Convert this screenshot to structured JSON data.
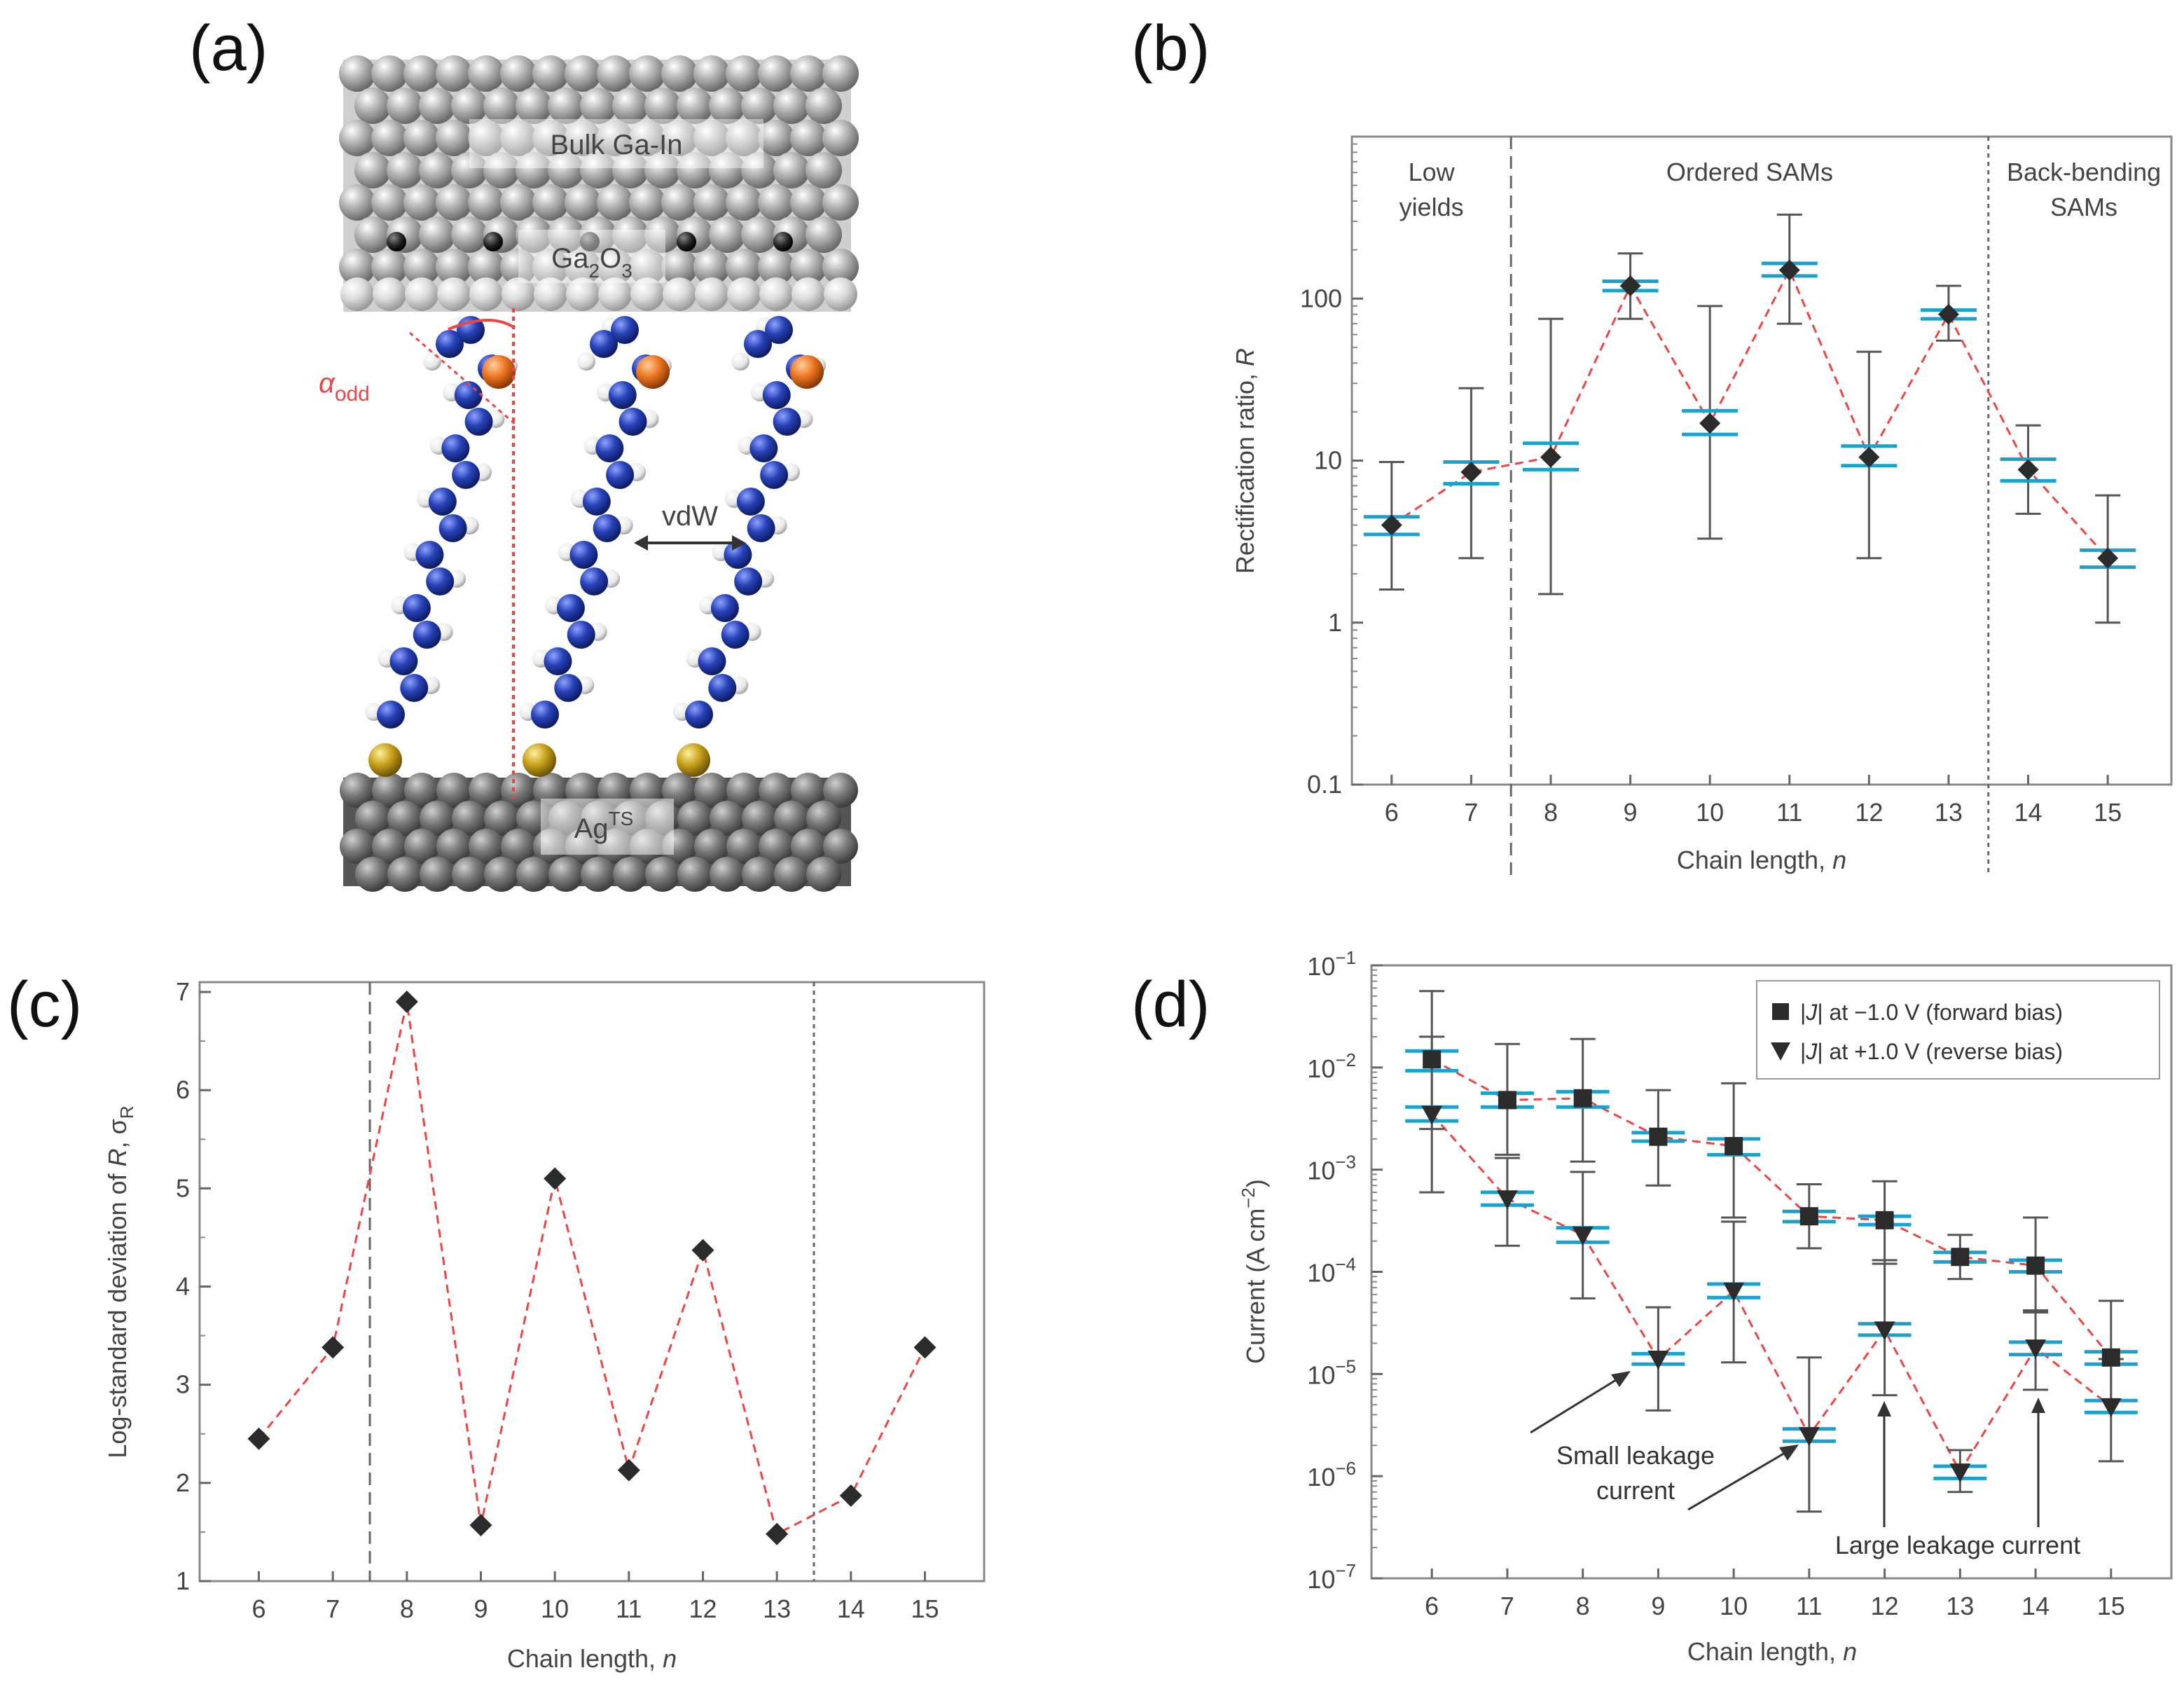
{
  "panels": {
    "a": {
      "letter": "(a)",
      "labels": {
        "bulk": "Bulk Ga-In",
        "oxide_main": "Ga",
        "oxide_sub": "2",
        "oxide_mid": "O",
        "oxide_sub2": "3",
        "alpha": "α",
        "alpha_sub": "odd",
        "vdw": "vdW",
        "ag_main": "Ag",
        "ag_sup": "TS"
      }
    },
    "b": {
      "letter": "(b)"
    },
    "c": {
      "letter": "(c)"
    },
    "d": {
      "letter": "(d)"
    }
  },
  "colors": {
    "dashed_line": "#ee4444",
    "marker": "#2b2b2b",
    "cap": "#1aa1cc",
    "errorbar": "#555555",
    "carbon": "#1f3aa8",
    "hydrogen": "#f2f2f2",
    "sulfur": "#c9a21c",
    "orange_atom": "#ee7722",
    "ag_atom": "#6e6e6e",
    "gain_atom": "#9b9b9b"
  },
  "chart_data": [
    {
      "panel": "b",
      "type": "scatter",
      "x": [
        6,
        7,
        8,
        9,
        10,
        11,
        12,
        13,
        14,
        15
      ],
      "y": [
        4,
        8.5,
        10.5,
        120,
        17,
        150,
        10.5,
        80,
        8.8,
        2.5
      ],
      "err_low": [
        1.6,
        2.5,
        1.5,
        75,
        3.3,
        70,
        2.5,
        55,
        4.7,
        1.0
      ],
      "err_high": [
        9.8,
        28,
        75,
        190,
        90,
        330,
        47,
        120,
        16.5,
        6.1
      ],
      "cap_low": [
        3.5,
        7.2,
        8.8,
        112,
        14.5,
        138,
        9.3,
        75,
        7.5,
        2.2
      ],
      "cap_high": [
        4.5,
        9.8,
        12.8,
        128,
        20.3,
        165,
        12.3,
        85,
        10.2,
        2.8
      ],
      "xlabel": "Chain length, ",
      "xlabel_var": "n",
      "ylabel": "Rectification ratio, ",
      "ylabel_var": "R",
      "yscale": "log",
      "ylim": [
        0.1,
        1000
      ],
      "xlim": [
        5.5,
        15.8
      ],
      "yticks": [
        "0.1",
        "1",
        "10",
        "100"
      ],
      "ytick_values": [
        0.1,
        1,
        10,
        100
      ],
      "xticks": [
        "6",
        "7",
        "8",
        "9",
        "10",
        "11",
        "12",
        "13",
        "14",
        "15"
      ],
      "vlines": [
        7.5,
        13.5
      ],
      "regions": [
        {
          "x": 6.5,
          "lines": [
            "Low",
            "yields"
          ]
        },
        {
          "x": 10.5,
          "lines": [
            "Ordered SAMs"
          ]
        },
        {
          "x": 14.7,
          "lines": [
            "Back-bending",
            "SAMs"
          ]
        }
      ]
    },
    {
      "panel": "c",
      "type": "scatter",
      "x": [
        6,
        7,
        8,
        9,
        10,
        11,
        12,
        13,
        14,
        15
      ],
      "y": [
        2.45,
        3.38,
        6.9,
        1.57,
        5.1,
        2.13,
        4.37,
        1.48,
        1.87,
        3.38
      ],
      "xlabel": "Chain length, ",
      "xlabel_var": "n",
      "ylabel": "Log-standard deviation of ",
      "ylabel_var": "R",
      "ylabel_tail": ", σ",
      "ylabel_sub": "R",
      "ylim": [
        1,
        7.1
      ],
      "xlim": [
        5.2,
        15.8
      ],
      "yticks": [
        "1",
        "2",
        "3",
        "4",
        "5",
        "6",
        "7"
      ],
      "ytick_values": [
        1,
        2,
        3,
        4,
        5,
        6,
        7
      ],
      "xticks": [
        "6",
        "7",
        "8",
        "9",
        "10",
        "11",
        "12",
        "13",
        "14",
        "15"
      ],
      "vlines": [
        7.5,
        13.5
      ]
    },
    {
      "panel": "d",
      "type": "scatter",
      "x": [
        6,
        7,
        8,
        9,
        10,
        11,
        12,
        13,
        14,
        15
      ],
      "series": [
        {
          "name_prefix": "|",
          "name_var": "J",
          "name": "| at −1.0 V (forward bias)",
          "marker": "square",
          "y": [
            0.012,
            0.0048,
            0.005,
            0.0021,
            0.0017,
            0.00035,
            0.00032,
            0.00014,
            0.000115,
            1.45e-05
          ],
          "err_low": [
            0.0025,
            0.0014,
            0.0012,
            0.0007,
            0.00034,
            0.00017,
            0.00012,
            8.5e-05,
            4e-05,
            5.5e-06
          ],
          "err_high": [
            0.02,
            0.017,
            0.019,
            0.006,
            0.007,
            0.00072,
            0.00077,
            0.00023,
            0.00034,
            5.2e-05
          ],
          "cap_low": [
            0.0093,
            0.0041,
            0.0041,
            0.0019,
            0.0014,
            0.00031,
            0.00029,
            0.000125,
            0.0001,
            1.25e-05
          ],
          "cap_high": [
            0.0145,
            0.0056,
            0.0058,
            0.0023,
            0.002,
            0.00039,
            0.00035,
            0.000155,
            0.00013,
            1.65e-05
          ]
        },
        {
          "name_prefix": "|",
          "name_var": "J",
          "name": "| at +1.0 V (reverse bias)",
          "marker": "triangle-down",
          "y": [
            0.0035,
            0.00052,
            0.00023,
            1.4e-05,
            6.5e-05,
            2.5e-06,
            2.7e-05,
            1.1e-06,
            1.8e-05,
            4.8e-06
          ],
          "err_low": [
            0.0006,
            0.00018,
            5.5e-05,
            4.4e-06,
            1.3e-05,
            4.5e-07,
            6.2e-06,
            7e-07,
            7e-06,
            1.4e-06
          ],
          "err_high": [
            0.056,
            0.0013,
            0.00095,
            4.5e-05,
            0.00031,
            1.45e-05,
            0.00013,
            1.8e-06,
            4.2e-05,
            1.4e-05
          ],
          "cap_low": [
            0.003,
            0.00045,
            0.000195,
            1.25e-05,
            5.6e-05,
            2.2e-06,
            2.4e-05,
            9.5e-07,
            1.55e-05,
            4.2e-06
          ],
          "cap_high": [
            0.0041,
            0.0006,
            0.00027,
            1.58e-05,
            7.6e-05,
            2.9e-06,
            3.1e-05,
            1.25e-06,
            2.05e-05,
            5.5e-06
          ]
        }
      ],
      "xlabel": "Chain length, ",
      "xlabel_var": "n",
      "ylabel": "Current (A cm",
      "ylabel_sup": "−2",
      "ylabel_tail": ")",
      "yscale": "log",
      "ylim": [
        1e-07,
        0.1
      ],
      "xlim": [
        5.2,
        15.8
      ],
      "ytick_values": [
        1e-07,
        1e-06,
        1e-05,
        0.0001,
        0.001,
        0.01,
        0.1
      ],
      "ytick_base": "10",
      "ytick_exps": [
        "−7",
        "−6",
        "−5",
        "−4",
        "−3",
        "−2",
        "−1"
      ],
      "xticks": [
        "6",
        "7",
        "8",
        "9",
        "10",
        "11",
        "12",
        "13",
        "14",
        "15"
      ],
      "legend": "top-right",
      "annotations": {
        "small_line1": "Small leakage",
        "small_line2": "current",
        "large": "Large leakage current"
      }
    }
  ]
}
